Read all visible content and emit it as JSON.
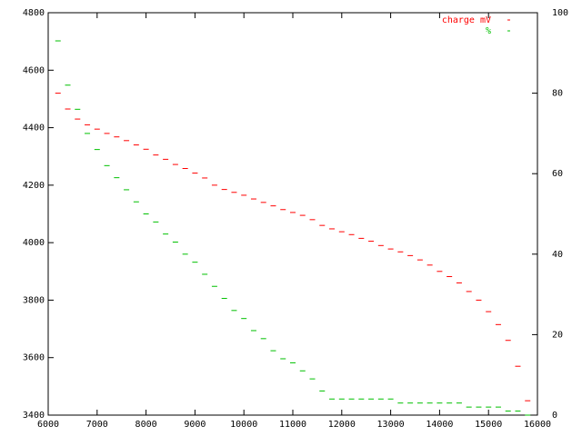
{
  "chart_data": {
    "type": "scatter",
    "x": [
      6200,
      6400,
      6600,
      6800,
      7000,
      7200,
      7400,
      7600,
      7800,
      8000,
      8200,
      8400,
      8600,
      8800,
      9000,
      9200,
      9400,
      9600,
      9800,
      10000,
      10200,
      10400,
      10600,
      10800,
      11000,
      11200,
      11400,
      11600,
      11800,
      12000,
      12200,
      12400,
      12600,
      12800,
      13000,
      13200,
      13400,
      13600,
      13800,
      14000,
      14200,
      14400,
      14600,
      14800,
      15000,
      15200,
      15400,
      15600,
      15800
    ],
    "series": [
      {
        "name": "charge mV",
        "color": "#ff0000",
        "axis": "y",
        "values": [
          4520,
          4465,
          4430,
          4410,
          4395,
          4380,
          4368,
          4355,
          4340,
          4325,
          4305,
          4290,
          4272,
          4258,
          4242,
          4225,
          4200,
          4185,
          4175,
          4165,
          4152,
          4140,
          4128,
          4115,
          4105,
          4095,
          4080,
          4060,
          4048,
          4038,
          4028,
          4015,
          4005,
          3990,
          3978,
          3968,
          3955,
          3940,
          3922,
          3900,
          3882,
          3860,
          3830,
          3800,
          3760,
          3715,
          3660,
          3570,
          3450
        ]
      },
      {
        "name": "%",
        "color": "#00c000",
        "axis": "y2",
        "values": [
          93,
          82,
          76,
          70,
          66,
          62,
          59,
          56,
          53,
          50,
          48,
          45,
          43,
          40,
          38,
          35,
          32,
          29,
          26,
          24,
          21,
          19,
          16,
          14,
          13,
          11,
          9,
          6,
          4,
          4,
          4,
          4,
          4,
          4,
          4,
          3,
          3,
          3,
          3,
          3,
          3,
          3,
          2,
          2,
          2,
          2,
          1,
          1,
          0
        ]
      }
    ],
    "xlim": [
      6000,
      16000
    ],
    "xticks": [
      6000,
      7000,
      8000,
      9000,
      10000,
      11000,
      12000,
      13000,
      14000,
      15000,
      16000
    ],
    "ylim": [
      3400,
      4800
    ],
    "yticks": [
      3400,
      3600,
      3800,
      4000,
      4200,
      4400,
      4600,
      4800
    ],
    "y2lim": [
      0,
      100
    ],
    "y2ticks": [
      0,
      20,
      40,
      60,
      80,
      100
    ],
    "legend": "top-right",
    "grid": false
  }
}
